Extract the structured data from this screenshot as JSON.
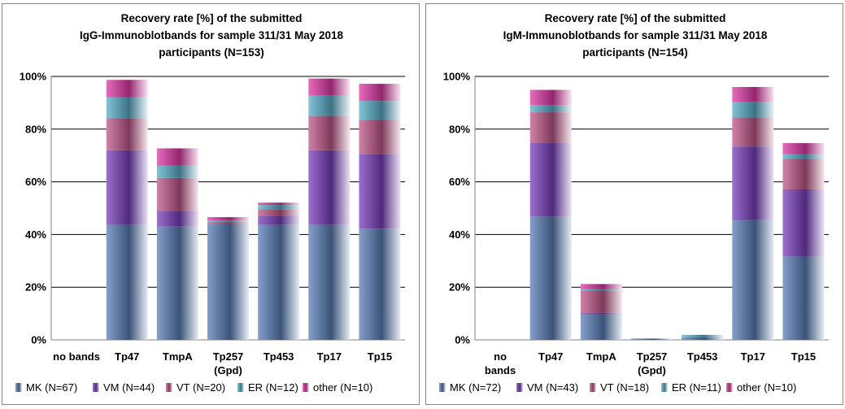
{
  "colors": {
    "MK": "#5b7fb8",
    "VM": "#7a3fbf",
    "VT": "#c0588a",
    "ER": "#5ab0cc",
    "other": "#e03aa8",
    "grid": "#000000",
    "axis": "#808080"
  },
  "chart_data": [
    {
      "type": "bar",
      "stacked": true,
      "title": [
        "Recovery rate [%] of the submitted",
        "IgG-Immunoblotbands for sample 311/31 May 2018",
        "participants (N=153)"
      ],
      "categories": [
        [
          "no",
          "bands"
        ],
        [
          "Tp47"
        ],
        [
          "TmpA"
        ],
        [
          "Tp257",
          "(Gpd)"
        ],
        [
          "Tp453"
        ],
        [
          "Tp17"
        ],
        [
          "Tp15"
        ]
      ],
      "category_layout": "inline",
      "yticks": [
        "0%",
        "20%",
        "40%",
        "60%",
        "80%",
        "100%"
      ],
      "ylim": [
        0,
        100
      ],
      "grid": true,
      "legend_position": "bottom",
      "series": [
        {
          "name": "MK (N=67)",
          "key": "MK",
          "values": [
            0,
            43.7,
            43.0,
            44.0,
            43.7,
            43.7,
            42.2
          ]
        },
        {
          "name": "VM (N=44)",
          "key": "VM",
          "values": [
            0,
            28.3,
            5.9,
            0.0,
            3.4,
            28.3,
            28.3
          ]
        },
        {
          "name": "VT (N=20)",
          "key": "VT",
          "values": [
            0,
            12.2,
            12.6,
            0.6,
            2.5,
            13.0,
            13.0
          ]
        },
        {
          "name": "ER (N=12)",
          "key": "ER",
          "values": [
            0,
            7.9,
            4.6,
            0.7,
            1.6,
            7.7,
            7.2
          ]
        },
        {
          "name": "other (N=10)",
          "key": "other",
          "values": [
            0,
            6.6,
            6.6,
            1.3,
            0.9,
            6.5,
            6.5
          ]
        }
      ]
    },
    {
      "type": "bar",
      "stacked": true,
      "title": [
        "Recovery rate [%] of the submitted",
        "IgM-Immunoblotbands for sample 311/31 May 2018",
        "participants (N=154)"
      ],
      "categories": [
        [
          "no",
          "bands"
        ],
        [
          "Tp47"
        ],
        [
          "TmpA"
        ],
        [
          "Tp257",
          "(Gpd)"
        ],
        [
          "Tp453"
        ],
        [
          "Tp17"
        ],
        [
          "Tp15"
        ]
      ],
      "category_layout": "stacked",
      "yticks": [
        "0%",
        "20%",
        "40%",
        "60%",
        "80%",
        "100%"
      ],
      "ylim": [
        0,
        100
      ],
      "grid": true,
      "legend_position": "bottom",
      "series": [
        {
          "name": "MK (N=72)",
          "key": "MK",
          "values": [
            0,
            46.8,
            9.7,
            0.5,
            1.0,
            45.5,
            31.8
          ]
        },
        {
          "name": "VM (N=43)",
          "key": "VM",
          "values": [
            0,
            27.9,
            0.6,
            0.0,
            0.0,
            27.9,
            25.3
          ]
        },
        {
          "name": "VT (N=18)",
          "key": "VT",
          "values": [
            0,
            11.7,
            8.4,
            0.0,
            0.0,
            11.0,
            11.7
          ]
        },
        {
          "name": "ER (N=11)",
          "key": "ER",
          "values": [
            0,
            2.7,
            0.6,
            0.0,
            0.9,
            5.8,
            1.6
          ]
        },
        {
          "name": "other (N=10)",
          "key": "other",
          "values": [
            0,
            5.8,
            1.9,
            0.0,
            0.0,
            5.8,
            4.3
          ]
        }
      ]
    }
  ]
}
